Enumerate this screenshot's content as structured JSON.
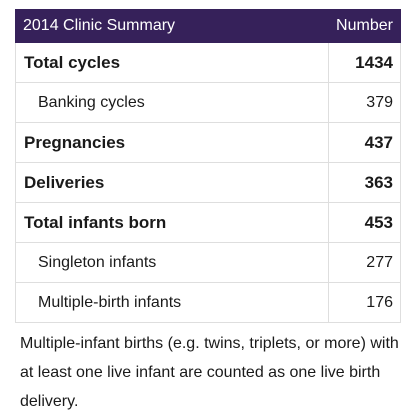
{
  "table": {
    "headers": [
      "2014 Clinic Summary",
      "Number"
    ],
    "rows": [
      {
        "label": "Total cycles",
        "value": "1434"
      },
      {
        "label": "Banking cycles",
        "value": "379"
      },
      {
        "label": "Pregnancies",
        "value": "437"
      },
      {
        "label": "Deliveries",
        "value": "363"
      },
      {
        "label": "Total infants born",
        "value": "453"
      },
      {
        "label": "Singleton infants",
        "value": "277"
      },
      {
        "label": "Multiple-birth infants",
        "value": "176"
      }
    ]
  },
  "footnote": "Multiple-infant births (e.g. twins, triplets, or more) with at least one live infant are counted as one live birth delivery."
}
